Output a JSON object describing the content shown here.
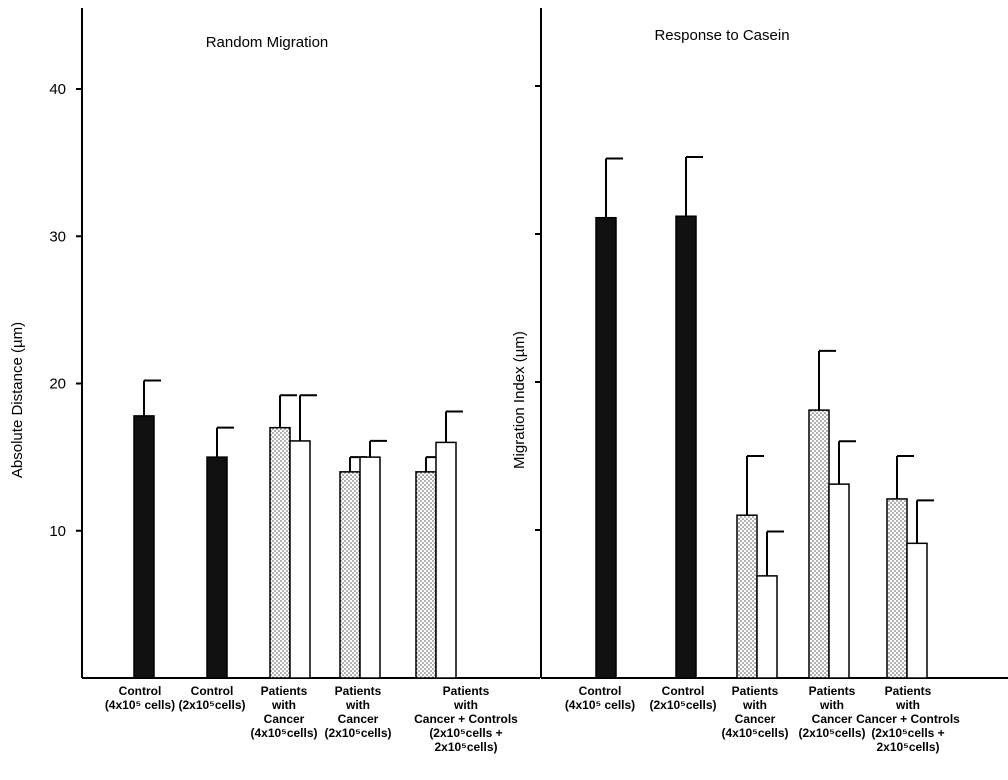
{
  "chart_data": [
    {
      "type": "bar",
      "title": "Random Migration",
      "ylabel": "Absolute Distance (µm)",
      "xlabel": "",
      "ylim": [
        0,
        45
      ],
      "yticks": [
        10,
        20,
        30,
        40
      ],
      "grid": false,
      "series": [
        {
          "values": [
            17.8,
            15.0,
            17.0,
            14.0,
            14.0
          ],
          "errors": [
            2.4,
            2.0,
            2.2,
            1.0,
            1.0
          ],
          "fill": "#111111"
        },
        {
          "values": [
            null,
            null,
            16.1,
            15.0,
            16.0
          ],
          "errors": [
            null,
            null,
            3.1,
            1.1,
            2.1
          ],
          "fill": "#ffffff"
        }
      ],
      "categories": [
        [
          "Control",
          "(4x10⁵ cells)"
        ],
        [
          "Control",
          "(2x10⁵cells)"
        ],
        [
          "Patients",
          "with",
          "Cancer",
          "(4x10⁵cells)"
        ],
        [
          "Patients",
          "with",
          "Cancer",
          "(2x10⁵cells)"
        ],
        [
          "Patients",
          "with",
          "Cancer + Controls",
          "(2x10⁵cells +",
          "2x10⁵cells)"
        ]
      ]
    },
    {
      "type": "bar",
      "title": "Response to Casein",
      "ylabel": "Migration Index (µm)",
      "xlabel": "",
      "ylim": [
        0,
        45
      ],
      "yticks": [
        10,
        20,
        30,
        40
      ],
      "show_tick_labels": false,
      "grid": false,
      "series": [
        {
          "values": [
            31.1,
            31.2,
            11.0,
            18.1,
            12.1
          ],
          "errors": [
            4.0,
            4.0,
            4.0,
            4.0,
            2.9
          ],
          "fill": "#111111"
        },
        {
          "values": [
            null,
            null,
            6.9,
            13.1,
            9.1
          ],
          "errors": [
            null,
            null,
            3.0,
            2.9,
            2.9
          ],
          "fill": "#ffffff"
        }
      ],
      "categories": [
        [
          "Control",
          "(4x10⁵ cells)"
        ],
        [
          "Control",
          "(2x10⁵cells)"
        ],
        [
          "Patients",
          "with",
          "Cancer",
          "(4x10⁵cells)"
        ],
        [
          "Patients",
          "with",
          "Cancer",
          "(2x10⁵cells)"
        ],
        [
          "Patients",
          "with",
          "Cancer + Controls",
          "(2x10⁵cells +",
          "2x10⁵cells)"
        ]
      ]
    }
  ]
}
